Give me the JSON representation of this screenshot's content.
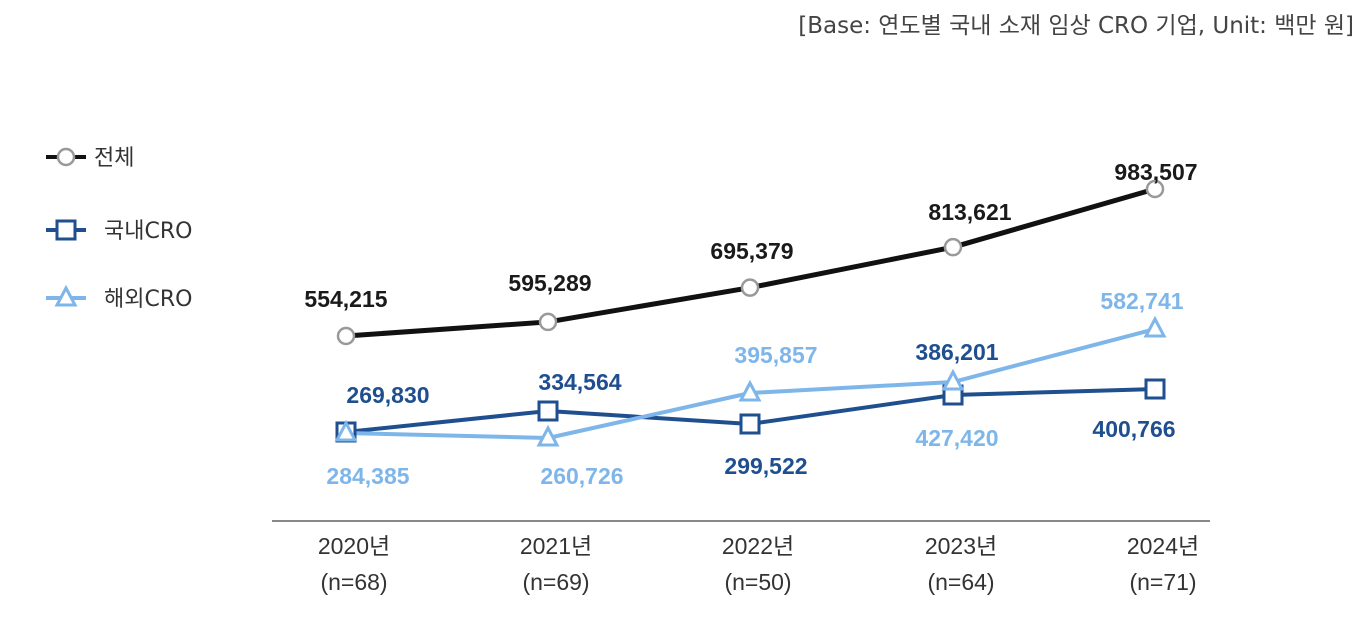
{
  "base_note": "[Base: 연도별 국내 소재 임상 CRO 기업, Unit: 백만 원]",
  "chart_data": {
    "type": "line",
    "categories": [
      "2020년",
      "2021년",
      "2022년",
      "2023년",
      "2024년"
    ],
    "sample_sizes": [
      "(n=68)",
      "(n=69)",
      "(n=50)",
      "(n=64)",
      "(n=71)"
    ],
    "legend_position": "left",
    "grid": false,
    "series": [
      {
        "name": "전체",
        "values": [
          554215,
          595289,
          695379,
          813621,
          983507
        ],
        "labels": [
          "554,215",
          "595,289",
          "695,379",
          "813,621",
          "983,507"
        ],
        "color": "#111111",
        "marker": "circle"
      },
      {
        "name": "국내CRO",
        "values": [
          269830,
          334564,
          299522,
          386201,
          400766
        ],
        "labels": [
          "269,830",
          "334,564",
          "299,522",
          "386,201",
          "400,766"
        ],
        "color": "#1f4f8f",
        "marker": "square"
      },
      {
        "name": "해외CRO",
        "values": [
          284385,
          260726,
          395857,
          427420,
          582741
        ],
        "labels": [
          "284,385",
          "260,726",
          "395,857",
          "427,420",
          "582,741"
        ],
        "color": "#7fb6ea",
        "marker": "triangle"
      }
    ]
  }
}
